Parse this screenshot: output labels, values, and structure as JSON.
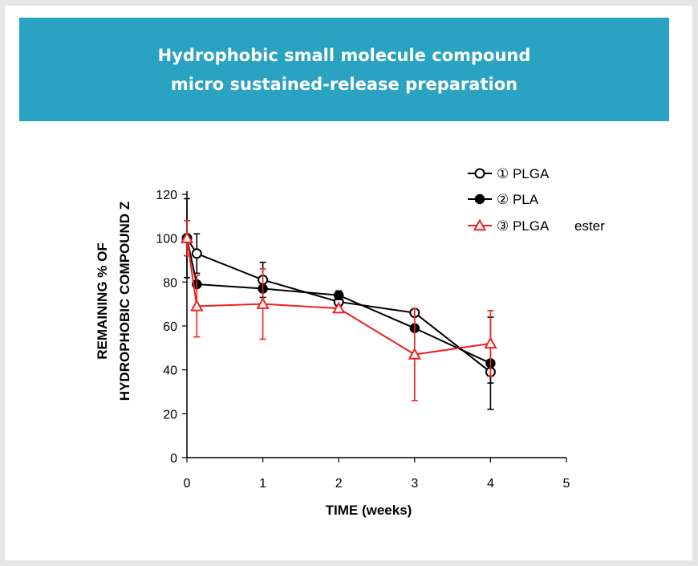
{
  "banner": {
    "line1": "Hydrophobic small molecule compound",
    "line2": "micro sustained-release preparation"
  },
  "chart_data": {
    "type": "line",
    "xlabel": "TIME (weeks)",
    "ylabel_lines": [
      "REMAINING % OF",
      "HYDROPHOBIC COMPOUND Z"
    ],
    "xlim": [
      0,
      5
    ],
    "ylim": [
      0,
      120
    ],
    "xticks": [
      0,
      1,
      2,
      3,
      4,
      5
    ],
    "yticks": [
      0,
      20,
      40,
      60,
      80,
      100,
      120
    ],
    "grid": false,
    "legend_position": "top-right",
    "series": [
      {
        "name": "① PLGA",
        "marker": "open-circle",
        "color": "#000000",
        "x": [
          0,
          0.13,
          1,
          2,
          3,
          4
        ],
        "y": [
          100,
          93,
          81,
          71,
          66,
          39
        ],
        "err": [
          8,
          9,
          8,
          2,
          1,
          5
        ]
      },
      {
        "name": "② PLA",
        "marker": "filled-circle",
        "color": "#000000",
        "x": [
          0,
          0.13,
          1,
          2,
          3,
          4
        ],
        "y": [
          100,
          79,
          77,
          74,
          59,
          43
        ],
        "err": [
          18,
          0,
          0,
          2,
          0,
          21
        ]
      },
      {
        "name": "③ PLGA",
        "suffix": "ester",
        "marker": "open-triangle",
        "color": "#ee2222",
        "x": [
          0,
          0.13,
          1,
          2,
          3,
          4
        ],
        "y": [
          100,
          69,
          70,
          68,
          47,
          52
        ],
        "err": [
          8,
          14,
          16,
          0,
          21,
          15
        ]
      }
    ]
  }
}
